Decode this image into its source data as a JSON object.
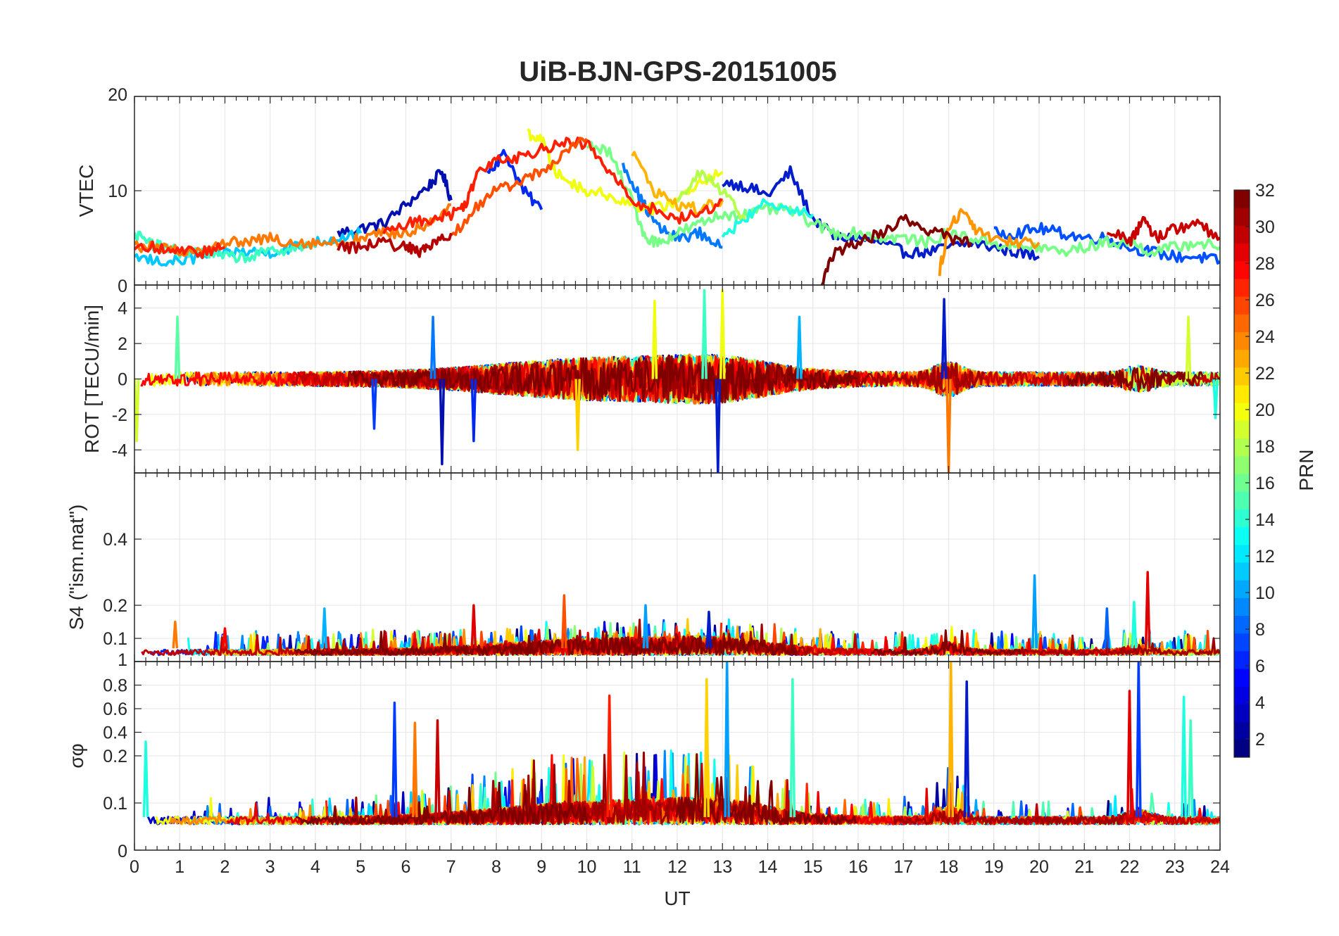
{
  "title": "UiB-BJN-GPS-20151005",
  "x_axis": {
    "label": "UT",
    "range": [
      0,
      24
    ],
    "ticks": [
      "0",
      "1",
      "2",
      "3",
      "4",
      "5",
      "6",
      "7",
      "8",
      "9",
      "10",
      "11",
      "12",
      "13",
      "14",
      "15",
      "16",
      "17",
      "18",
      "19",
      "20",
      "21",
      "22",
      "23",
      "24"
    ]
  },
  "colorbar": {
    "label": "PRN",
    "range": [
      1,
      32
    ],
    "colormap": "jet",
    "ticks": [
      "2",
      "4",
      "6",
      "8",
      "10",
      "12",
      "14",
      "16",
      "18",
      "20",
      "22",
      "24",
      "26",
      "28",
      "30",
      "32"
    ]
  },
  "chart_data": [
    {
      "type": "line",
      "panel": "vtec",
      "ylabel": "VTEC",
      "ylim": [
        0,
        20
      ],
      "yticks": [
        "0",
        "10",
        "20"
      ],
      "grid": true,
      "series": [
        {
          "prn": 2,
          "color": "#000FB0",
          "x": [
            4.5,
            5.0,
            5.5,
            6.0,
            6.5,
            6.8,
            7.0
          ],
          "y": [
            5.5,
            6.0,
            6.5,
            8.5,
            10.5,
            12.0,
            9.0
          ]
        },
        {
          "prn": 4,
          "color": "#0028F0",
          "x": [
            7.8,
            8.2,
            8.6,
            9.0
          ],
          "y": [
            12.0,
            14.0,
            10.0,
            8.0
          ]
        },
        {
          "prn": 3,
          "color": "#001CCB",
          "x": [
            13.0,
            13.5,
            14.0,
            14.5,
            15.0,
            15.5,
            16.0,
            16.5,
            17.0,
            17.5,
            18.0,
            18.5,
            19.0,
            19.5,
            20.0
          ],
          "y": [
            11.0,
            10.5,
            9.5,
            12.0,
            7.0,
            5.0,
            5.0,
            4.5,
            3.5,
            3.5,
            4.0,
            4.5,
            4.0,
            3.5,
            3.0
          ]
        },
        {
          "prn": 8,
          "color": "#0078FF",
          "x": [
            10.8,
            11.2,
            11.6,
            12.0,
            12.5,
            13.0
          ],
          "y": [
            13.0,
            9.0,
            6.0,
            5.0,
            5.5,
            4.0
          ]
        },
        {
          "prn": 6,
          "color": "#0050FF",
          "x": [
            19.0,
            19.5,
            20.0,
            20.5,
            21.0,
            21.5,
            22.0,
            22.5,
            23.0,
            23.5,
            24.0
          ],
          "y": [
            5.5,
            5.5,
            6.0,
            5.5,
            5.0,
            5.0,
            4.0,
            3.5,
            3.0,
            3.0,
            2.5
          ]
        },
        {
          "prn": 12,
          "color": "#00C8FF",
          "x": [
            0.0,
            0.5,
            1.0,
            1.5,
            2.0,
            2.5,
            3.0,
            3.5,
            4.0,
            4.5,
            5.0
          ],
          "y": [
            3.0,
            2.5,
            2.5,
            3.0,
            3.5,
            3.5,
            3.5,
            4.0,
            4.5,
            5.0,
            5.5
          ]
        },
        {
          "prn": 15,
          "color": "#3CFFC3",
          "x": [
            0.0,
            0.3,
            0.6,
            1.0,
            1.5,
            2.0,
            2.5,
            3.0,
            3.5,
            4.0
          ],
          "y": [
            5.5,
            4.5,
            4.0,
            3.5,
            3.5,
            3.0,
            3.0,
            3.5,
            4.0,
            4.0
          ]
        },
        {
          "prn": 17,
          "color": "#78FF87",
          "x": [
            10.0,
            10.5,
            11.0,
            11.3,
            11.6,
            12.0,
            12.5,
            13.0,
            13.5,
            14.0,
            14.5,
            15.0,
            15.5,
            16.0,
            16.5,
            17.0,
            17.5,
            18.0,
            18.5,
            19.0,
            19.5,
            20.0,
            20.5,
            21.0,
            21.5,
            22.0,
            22.5,
            23.0,
            23.5,
            24.0
          ],
          "y": [
            15.0,
            14.0,
            9.0,
            5.0,
            4.5,
            5.5,
            6.5,
            7.5,
            7.5,
            8.0,
            8.0,
            6.5,
            5.5,
            5.5,
            5.0,
            5.0,
            4.5,
            5.5,
            5.0,
            4.5,
            4.0,
            4.0,
            3.5,
            4.0,
            4.5,
            4.5,
            3.5,
            4.0,
            4.5,
            4.0
          ]
        },
        {
          "prn": 20,
          "color": "#F0FF0F",
          "x": [
            8.7,
            9.0,
            9.3,
            9.6,
            10.0,
            10.5,
            11.0,
            11.5,
            12.0,
            12.5,
            13.0
          ],
          "y": [
            16.0,
            15.5,
            12.0,
            11.0,
            10.0,
            9.5,
            8.5,
            8.0,
            9.0,
            11.0,
            12.0
          ]
        },
        {
          "prn": 22,
          "color": "#FFB400",
          "x": [
            11.0,
            11.5,
            12.0,
            12.5,
            13.0
          ],
          "y": [
            14.0,
            10.0,
            8.5,
            8.0,
            9.0
          ]
        },
        {
          "prn": 24,
          "color": "#FF7800",
          "x": [
            0.0,
            0.5,
            1.0,
            1.5,
            2.0,
            2.5,
            3.0,
            3.5,
            4.0,
            4.5,
            5.0,
            5.5,
            6.0,
            6.5,
            7.0
          ],
          "y": [
            4.0,
            4.0,
            3.5,
            4.0,
            4.5,
            4.5,
            5.0,
            4.5,
            4.5,
            4.5,
            5.0,
            5.5,
            5.5,
            6.5,
            8.5
          ]
        },
        {
          "prn": 23,
          "color": "#FF9600",
          "x": [
            17.8,
            18.0,
            18.3,
            18.6,
            19.0,
            19.5,
            20.0
          ],
          "y": [
            1.5,
            6.0,
            8.0,
            6.0,
            5.0,
            4.5,
            4.5
          ]
        },
        {
          "prn": 27,
          "color": "#FF1E00",
          "x": [
            0.0,
            0.5,
            1.0,
            1.5,
            2.0
          ],
          "y": [
            4.0,
            4.0,
            3.5,
            3.5,
            4.0
          ]
        },
        {
          "prn": 27,
          "color": "#FF1E00",
          "x": [
            5.5,
            6.0,
            6.5,
            7.0,
            7.3,
            7.6,
            8.0,
            8.5,
            9.0,
            9.5,
            10.0,
            10.5,
            11.0,
            11.5,
            12.0,
            12.5,
            13.0
          ],
          "y": [
            5.5,
            6.5,
            7.0,
            7.5,
            8.5,
            12.0,
            13.5,
            13.5,
            14.5,
            15.0,
            15.0,
            12.0,
            9.0,
            8.0,
            7.0,
            7.5,
            9.0
          ]
        },
        {
          "prn": 25,
          "color": "#FF5000",
          "x": [
            7.0,
            7.5,
            8.0,
            8.5,
            9.0,
            9.5,
            10.0
          ],
          "y": [
            5.0,
            8.0,
            10.0,
            11.0,
            12.0,
            14.0,
            15.5
          ]
        },
        {
          "prn": 31,
          "color": "#B40000",
          "x": [
            4.5,
            5.0,
            5.5,
            6.0,
            6.3,
            6.6,
            7.0
          ],
          "y": [
            4.0,
            4.0,
            4.5,
            4.0,
            3.5,
            4.5,
            5.5
          ]
        },
        {
          "prn": 32,
          "color": "#800000",
          "x": [
            15.2,
            15.5,
            16.0,
            16.5,
            17.0,
            17.5,
            18.0,
            18.5
          ],
          "y": [
            0.5,
            3.5,
            4.5,
            5.5,
            7.0,
            6.0,
            5.0,
            4.5
          ]
        },
        {
          "prn": 30,
          "color": "#C80000",
          "x": [
            21.5,
            22.0,
            22.3,
            22.6,
            23.0,
            23.5,
            24.0
          ],
          "y": [
            6.0,
            4.5,
            7.0,
            5.0,
            6.0,
            6.5,
            5.0
          ]
        },
        {
          "prn": 13,
          "color": "#1EFFE1",
          "x": [
            13.0,
            13.5,
            14.0,
            14.5,
            15.0
          ],
          "y": [
            5.0,
            7.0,
            9.0,
            8.0,
            7.5
          ]
        },
        {
          "prn": 18,
          "color": "#B4FF4B",
          "x": [
            12.0,
            12.5,
            13.0,
            13.5
          ],
          "y": [
            9.0,
            12.0,
            10.0,
            7.0
          ]
        }
      ]
    },
    {
      "type": "line",
      "panel": "rot",
      "ylabel": "ROT [TECU/min]",
      "ylim": [
        -5.3,
        5.3
      ],
      "yticks": [
        "-4",
        "-2",
        "0",
        "2",
        "4"
      ],
      "grid": true,
      "spikes": [
        {
          "prn": 16,
          "color": "#5AFFA5",
          "x": 0.95,
          "y": 3.5
        },
        {
          "prn": 19,
          "color": "#D2FF2D",
          "x": 0.05,
          "y": -3.5
        },
        {
          "prn": 5,
          "color": "#003CFF",
          "x": 5.3,
          "y": -2.8
        },
        {
          "prn": 8,
          "color": "#0078FF",
          "x": 6.6,
          "y": 3.5
        },
        {
          "prn": 2,
          "color": "#000FB0",
          "x": 6.8,
          "y": -4.8
        },
        {
          "prn": 4,
          "color": "#0028F0",
          "x": 7.5,
          "y": -3.5
        },
        {
          "prn": 21,
          "color": "#FFD200",
          "x": 9.8,
          "y": -4.0
        },
        {
          "prn": 20,
          "color": "#F0FF0F",
          "x": 11.5,
          "y": 4.4
        },
        {
          "prn": 15,
          "color": "#3CFFC3",
          "x": 12.6,
          "y": 5.0
        },
        {
          "prn": 20,
          "color": "#F0FF0F",
          "x": 13.0,
          "y": 5.0
        },
        {
          "prn": 3,
          "color": "#001CCB",
          "x": 12.9,
          "y": -5.3
        },
        {
          "prn": 11,
          "color": "#00B4FF",
          "x": 14.7,
          "y": 3.5
        },
        {
          "prn": 3,
          "color": "#001CCB",
          "x": 17.9,
          "y": 4.5
        },
        {
          "prn": 24,
          "color": "#FF7800",
          "x": 18.0,
          "y": -5.3
        },
        {
          "prn": 19,
          "color": "#D2FF2D",
          "x": 23.3,
          "y": 3.5
        },
        {
          "prn": 14,
          "color": "#1EFFE1",
          "x": 23.9,
          "y": -2.2
        }
      ]
    },
    {
      "type": "line",
      "panel": "s4",
      "ylabel": "S4 (\"ism.mat\")",
      "ylim": [
        0.03,
        0.6
      ],
      "yticks": [
        "0.1",
        "0.2",
        "0.4"
      ],
      "grid": true,
      "spikes": [
        {
          "prn": 24,
          "color": "#FF7800",
          "x": 0.9,
          "y": 0.15
        },
        {
          "prn": 28,
          "color": "#FF0000",
          "x": 2.0,
          "y": 0.13
        },
        {
          "prn": 11,
          "color": "#00B4FF",
          "x": 4.2,
          "y": 0.19
        },
        {
          "prn": 29,
          "color": "#E10000",
          "x": 7.5,
          "y": 0.2
        },
        {
          "prn": 25,
          "color": "#FF5000",
          "x": 9.5,
          "y": 0.23
        },
        {
          "prn": 10,
          "color": "#00A0FF",
          "x": 11.3,
          "y": 0.2
        },
        {
          "prn": 3,
          "color": "#001CCB",
          "x": 12.7,
          "y": 0.18
        },
        {
          "prn": 10,
          "color": "#00A0FF",
          "x": 19.9,
          "y": 0.29
        },
        {
          "prn": 7,
          "color": "#0064FF",
          "x": 21.5,
          "y": 0.19
        },
        {
          "prn": 14,
          "color": "#1EFFE1",
          "x": 22.1,
          "y": 0.21
        },
        {
          "prn": 29,
          "color": "#E10000",
          "x": 22.4,
          "y": 0.3
        }
      ]
    },
    {
      "type": "line",
      "panel": "sigma_phi",
      "ylabel": "σφ",
      "ylim": [
        0,
        1
      ],
      "yticks": [
        "0",
        "0.1",
        "0.2",
        "0.4",
        "0.6",
        "0.8",
        "1"
      ],
      "grid": true,
      "spikes": [
        {
          "prn": 14,
          "color": "#1EFFE1",
          "x": 0.25,
          "y": 0.32
        },
        {
          "prn": 5,
          "color": "#003CFF",
          "x": 5.75,
          "y": 0.65
        },
        {
          "prn": 24,
          "color": "#FF7800",
          "x": 6.2,
          "y": 0.48
        },
        {
          "prn": 30,
          "color": "#C80000",
          "x": 6.7,
          "y": 0.5
        },
        {
          "prn": 27,
          "color": "#FF1E00",
          "x": 10.5,
          "y": 0.71
        },
        {
          "prn": 21,
          "color": "#FFD200",
          "x": 12.65,
          "y": 0.85
        },
        {
          "prn": 10,
          "color": "#00A0FF",
          "x": 13.1,
          "y": 1.0
        },
        {
          "prn": 15,
          "color": "#3CFFC3",
          "x": 14.55,
          "y": 0.85
        },
        {
          "prn": 22,
          "color": "#FFB400",
          "x": 18.05,
          "y": 1.0
        },
        {
          "prn": 3,
          "color": "#001CCB",
          "x": 18.4,
          "y": 0.83
        },
        {
          "prn": 29,
          "color": "#E10000",
          "x": 22.0,
          "y": 0.75
        },
        {
          "prn": 5,
          "color": "#003CFF",
          "x": 22.2,
          "y": 1.0
        },
        {
          "prn": 13,
          "color": "#1EFFE1",
          "x": 23.2,
          "y": 0.7
        },
        {
          "prn": 15,
          "color": "#3CFFC3",
          "x": 23.35,
          "y": 0.5
        }
      ]
    }
  ]
}
